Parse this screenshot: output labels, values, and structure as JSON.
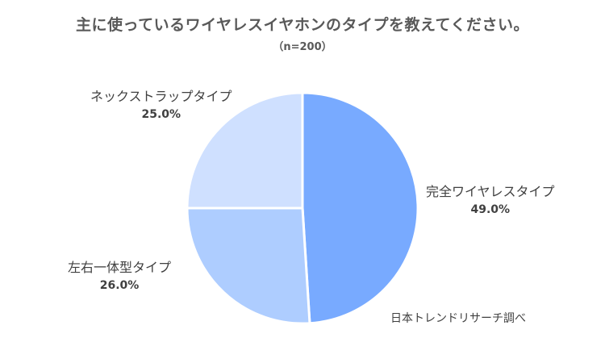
{
  "chart_data": {
    "type": "pie",
    "title": "主に使っているワイヤレスイヤホンのタイプを教えてください。",
    "subtitle": "（n=200）",
    "unit": "%",
    "slices": [
      {
        "label": "完全ワイヤレスタイプ",
        "value": 49.0,
        "display": "49.0%",
        "color": "#78aaff"
      },
      {
        "label": "左右一体型タイプ",
        "value": 26.0,
        "display": "26.0%",
        "color": "#aecdff"
      },
      {
        "label": "ネックストラップタイプ",
        "value": 25.0,
        "display": "25.0%",
        "color": "#cfe0ff"
      }
    ],
    "start_angle_deg": 0,
    "direction": "clockwise",
    "source": "日本トレンドリサーチ調べ"
  }
}
